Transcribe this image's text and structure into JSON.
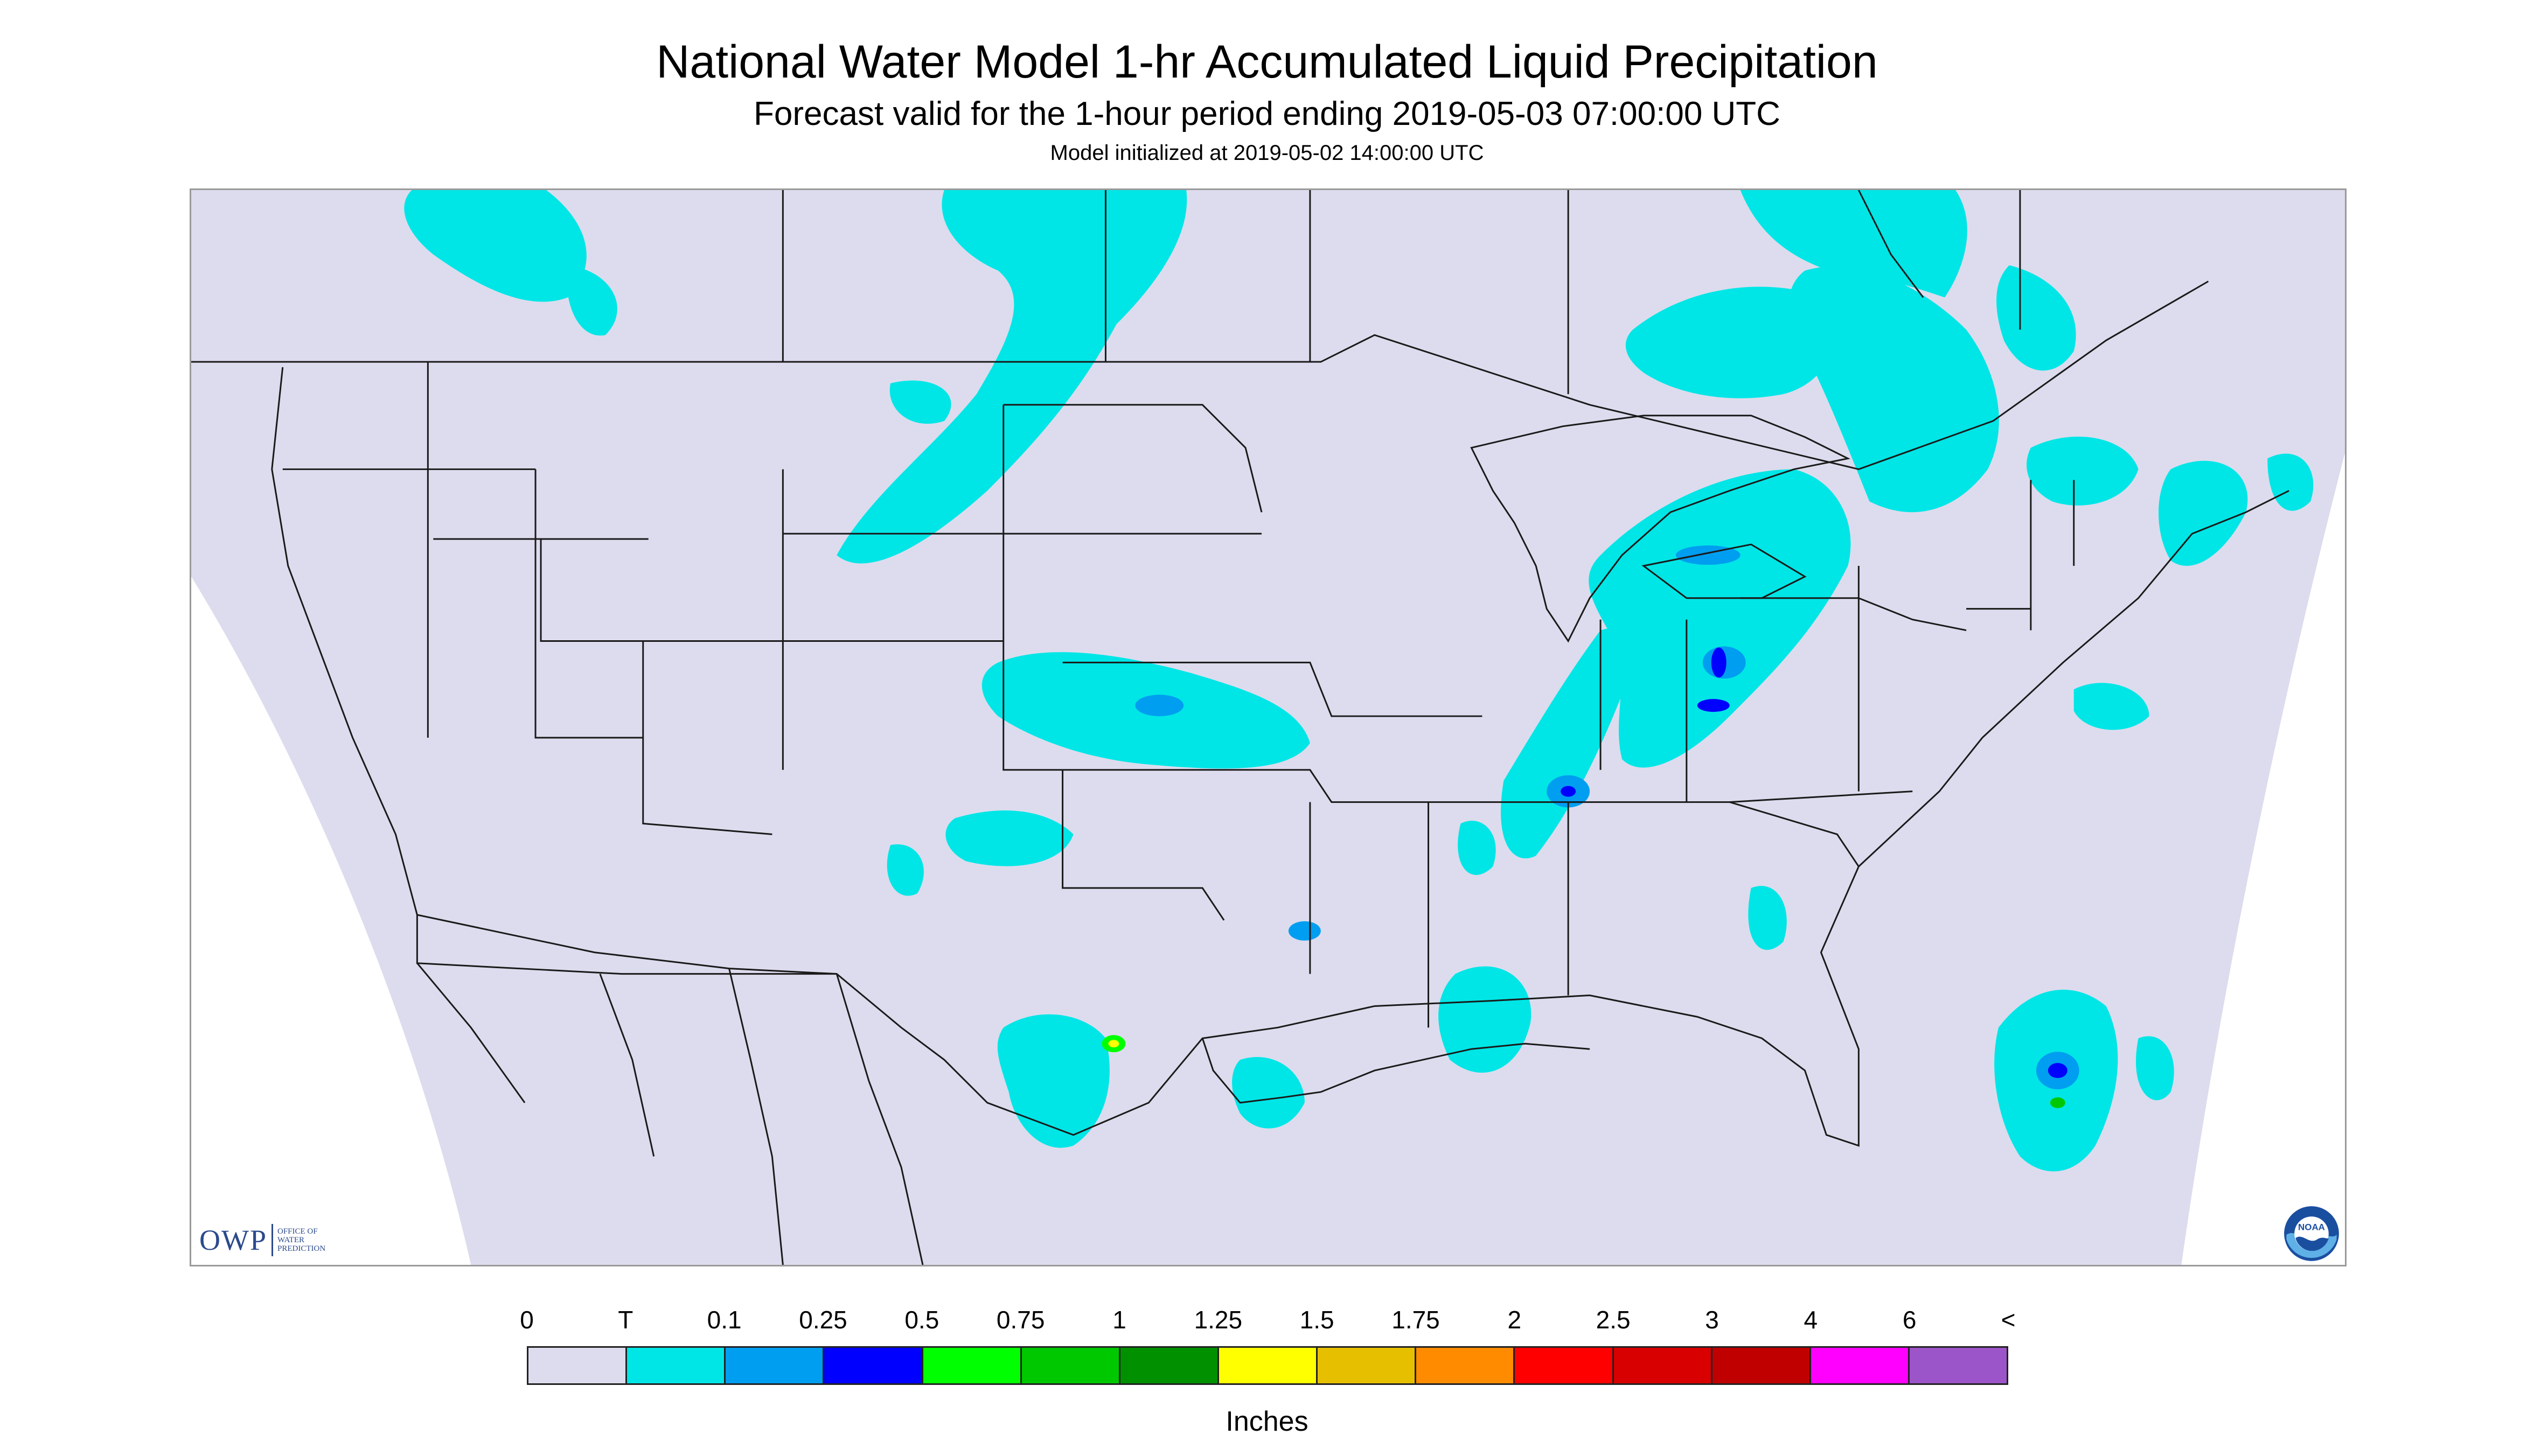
{
  "title": "National Water Model 1-hr Accumulated Liquid Precipitation",
  "subtitle": "Forecast valid for the 1-hour period ending 2019-05-03 07:00:00 UTC",
  "init_line": "Model initialized at 2019-05-02 14:00:00 UTC",
  "logos": {
    "owp": {
      "mark": "OWP",
      "lines": [
        "OFFICE OF",
        "WATER",
        "PREDICTION"
      ]
    },
    "noaa": {
      "mark": "NOAA"
    }
  },
  "colors": {
    "background": "#dcdcee",
    "frame": "#ffffff",
    "boundary": "#1a1a1a",
    "precip_trace": "#00e6e6"
  },
  "legend": {
    "unit": "Inches",
    "labels": [
      "0",
      "T",
      "0.1",
      "0.25",
      "0.5",
      "0.75",
      "1",
      "1.25",
      "1.5",
      "1.75",
      "2",
      "2.5",
      "3",
      "4",
      "6",
      "<"
    ],
    "colors": [
      "#dcdcee",
      "#00e6e6",
      "#009ef0",
      "#0000ff",
      "#00ff00",
      "#00c800",
      "#009000",
      "#ffff00",
      "#e6c000",
      "#ff8c00",
      "#ff0000",
      "#d80000",
      "#c00000",
      "#ff00ff",
      "#9c55c8"
    ]
  }
}
